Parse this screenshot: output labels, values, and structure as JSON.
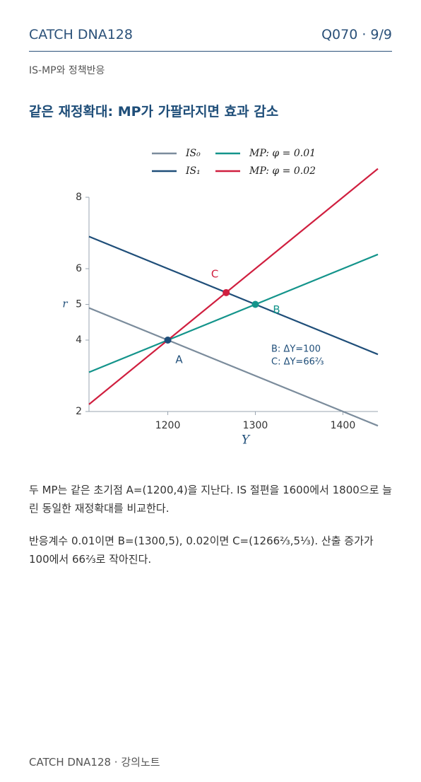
{
  "header": {
    "left": "CATCH DNA128",
    "right": "Q070 · 9/9"
  },
  "subtitle": "IS-MP와 정책반응",
  "heading": "같은 재정확대: MP가 가팔라지면 효과 감소",
  "chart_data": {
    "type": "line",
    "series": [
      {
        "name": "IS₀",
        "color": "#7b8c9c",
        "x": [
          1110,
          1440
        ],
        "values": [
          4.9,
          1.6
        ]
      },
      {
        "name": "IS₁",
        "color": "#1f4e79",
        "x": [
          1110,
          1440
        ],
        "values": [
          6.9,
          3.6
        ]
      },
      {
        "name": "MP: φ = 0.01",
        "color": "#14948b",
        "x": [
          1110,
          1440
        ],
        "values": [
          3.1,
          6.4
        ]
      },
      {
        "name": "MP: φ = 0.02",
        "color": "#d01f3f",
        "x": [
          1110,
          1440
        ],
        "values": [
          2.2,
          8.8
        ]
      }
    ],
    "points": [
      {
        "label": "A",
        "x": 1200,
        "y": 4,
        "color": "#1f4e79"
      },
      {
        "label": "B",
        "x": 1300,
        "y": 5,
        "color": "#14948b"
      },
      {
        "label": "C",
        "x": 1266.67,
        "y": 5.33,
        "color": "#d01f3f"
      }
    ],
    "annotations": [
      "B: ΔY=100",
      "C: ΔY=66⅔"
    ],
    "xlabel": "Y",
    "ylabel": "r",
    "xlim": [
      1110,
      1440
    ],
    "ylim": [
      2,
      8
    ],
    "xticks": [
      1200,
      1300,
      1400
    ],
    "yticks": [
      2,
      4,
      5,
      6,
      8
    ]
  },
  "paragraphs": [
    "두 MP는 같은 초기점 A=(1200,4)을 지난다. IS 절편을 1600에서 1800으로 늘린 동일한 재정확대를 비교한다.",
    "반응계수 0.01이면 B=(1300,5), 0.02이면 C=(1266⅔,5⅓). 산출 증가가 100에서 66⅔로 작아진다."
  ],
  "footer": "CATCH DNA128 · 강의노트"
}
